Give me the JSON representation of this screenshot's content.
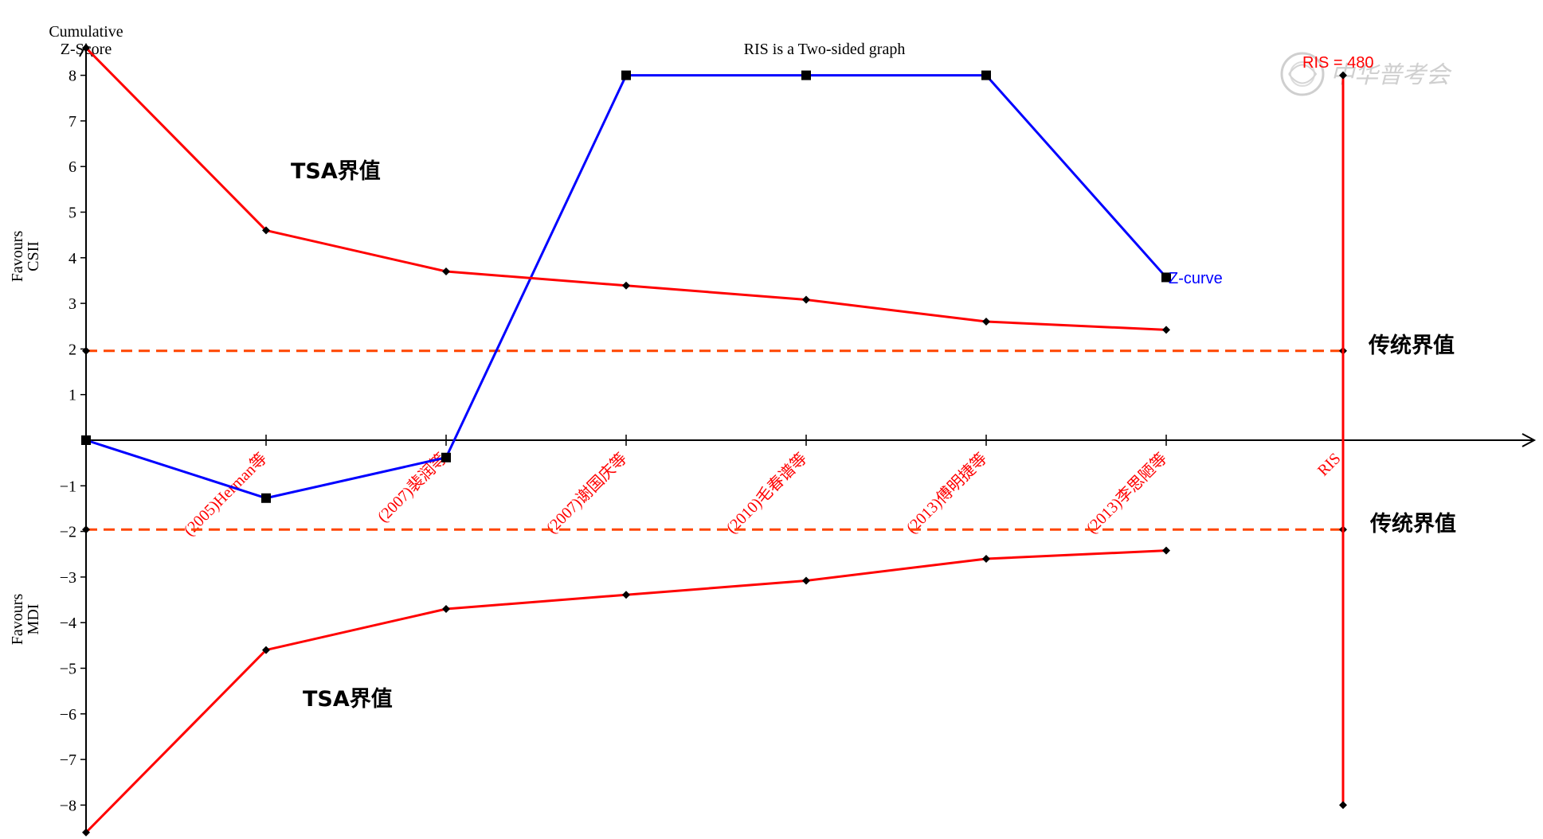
{
  "chart_data": {
    "type": "line",
    "title": "RIS is a Two-sided graph",
    "ylabel": "Cumulative Z-Score",
    "ylim": [
      -8.5,
      8.5
    ],
    "yticks": [
      -8,
      -7,
      -6,
      -5,
      -4,
      -3,
      -2,
      -1,
      1,
      2,
      3,
      4,
      5,
      6,
      7,
      8
    ],
    "upper_region_label": "Favours CSII",
    "lower_region_label": "Favours MDI",
    "categories": [
      "",
      "(2005)Herman等",
      "(2007)裴润等",
      "(2007)谢国庆等",
      "(2010)毛春谱等",
      "(2013)傅明捷等",
      "(2013)李思陋等"
    ],
    "ris_label": "RIS",
    "ris_annotation": "RIS = 480",
    "series": [
      {
        "name": "Z-curve",
        "color": "#0000ff",
        "marker": "square",
        "values": [
          0,
          -1.27,
          -0.38,
          8,
          8,
          8,
          3.57
        ]
      },
      {
        "name": "TSA界值",
        "color": "#ff0000",
        "marker": "diamond",
        "values": [
          8.6,
          4.6,
          3.7,
          3.39,
          3.08,
          2.6,
          2.42
        ]
      },
      {
        "name": "TSA界值",
        "color": "#ff0000",
        "marker": "diamond",
        "values": [
          -8.6,
          -4.6,
          -3.7,
          -3.39,
          -3.08,
          -2.6,
          -2.42
        ]
      }
    ],
    "conventional_boundaries": {
      "name": "传统界值",
      "upper": 1.96,
      "lower": -1.96,
      "color": "#ff4500",
      "style": "dashed"
    },
    "ris_line": {
      "color": "#ff0000",
      "ymin": -8,
      "ymax": 8
    }
  },
  "labels": {
    "tsa_upper": "TSA界值",
    "tsa_lower": "TSA界值",
    "conv_upper": "传统界值",
    "conv_lower": "传统界值",
    "z_curve": "Z-curve",
    "ylabel_line1": "Cumulative",
    "ylabel_line2": "Z-Score",
    "favour_upper_line1": "Favours",
    "favour_upper_line2": "CSII",
    "favour_lower_line1": "Favours",
    "favour_lower_line2": "MDI"
  },
  "watermark": {
    "text": "中华普考会",
    "icon": "seal-icon"
  }
}
